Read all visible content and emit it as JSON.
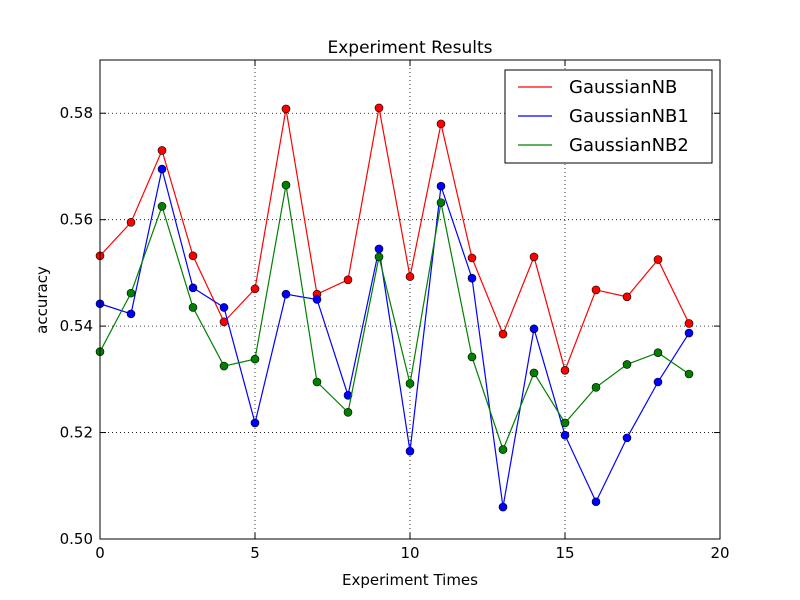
{
  "chart_data": {
    "type": "line",
    "title": "Experiment Results",
    "xlabel": "Experiment Times",
    "ylabel": "accuracy",
    "xlim": [
      0,
      20
    ],
    "ylim": [
      0.5,
      0.59
    ],
    "x_ticks": [
      0,
      5,
      10,
      15,
      20
    ],
    "x_tick_labels": [
      "0",
      "5",
      "10",
      "15",
      "20"
    ],
    "y_ticks": [
      0.5,
      0.52,
      0.54,
      0.56,
      0.58
    ],
    "y_tick_labels": [
      "0.50",
      "0.52",
      "0.54",
      "0.56",
      "0.58"
    ],
    "grid": true,
    "grid_style": "dotted",
    "legend_position": "top-right",
    "x": [
      0,
      1,
      2,
      3,
      4,
      5,
      6,
      7,
      8,
      9,
      10,
      11,
      12,
      13,
      14,
      15,
      16,
      17,
      18,
      19
    ],
    "series": [
      {
        "name": "GaussianNB",
        "color": "#ff0000",
        "marker": "circle",
        "values": [
          0.5532,
          0.5595,
          0.573,
          0.5532,
          0.5408,
          0.547,
          0.5808,
          0.546,
          0.5487,
          0.581,
          0.5493,
          0.578,
          0.5528,
          0.5385,
          0.553,
          0.5317,
          0.5468,
          0.5455,
          0.5525,
          0.5405
        ]
      },
      {
        "name": "GaussianNB1",
        "color": "#0000ff",
        "marker": "circle",
        "values": [
          0.5442,
          0.5423,
          0.5695,
          0.5472,
          0.5435,
          0.5218,
          0.546,
          0.545,
          0.527,
          0.5545,
          0.5165,
          0.5663,
          0.549,
          0.506,
          0.5395,
          0.5195,
          0.507,
          0.519,
          0.5295,
          0.5387
        ]
      },
      {
        "name": "GaussianNB2",
        "color": "#008000",
        "marker": "circle",
        "values": [
          0.5352,
          0.5462,
          0.5625,
          0.5435,
          0.5325,
          0.5338,
          0.5665,
          0.5295,
          0.5238,
          0.553,
          0.5292,
          0.5632,
          0.5342,
          0.5168,
          0.5312,
          0.5218,
          0.5285,
          0.5328,
          0.535,
          0.531
        ]
      }
    ]
  }
}
